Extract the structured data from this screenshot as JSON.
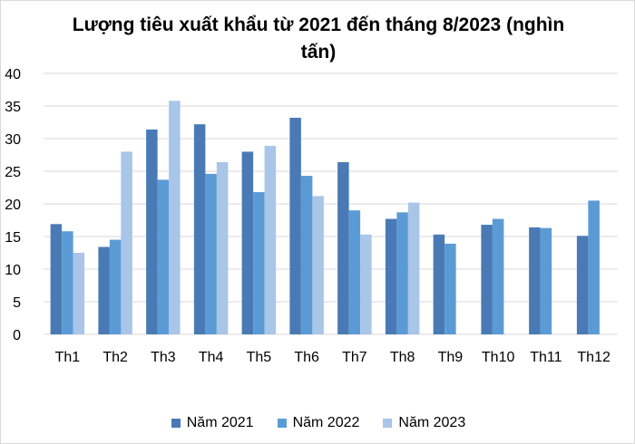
{
  "chart_data": {
    "type": "bar",
    "title": "Lượng tiêu xuất khẩu từ 2021 đến tháng 8/2023 (nghìn tấn)",
    "categories": [
      "Th1",
      "Th2",
      "Th3",
      "Th4",
      "Th5",
      "Th6",
      "Th7",
      "Th8",
      "Th9",
      "Th10",
      "Th11",
      "Th12"
    ],
    "ylim": [
      0,
      40
    ],
    "yticks": [
      0,
      5,
      10,
      15,
      20,
      25,
      30,
      35,
      40
    ],
    "grid": true,
    "legend_position": "bottom",
    "series": [
      {
        "name": "Năm 2021",
        "color": "#4a7ab5",
        "values": [
          16.9,
          13.4,
          31.4,
          32.2,
          28.0,
          33.2,
          26.4,
          17.7,
          15.3,
          16.8,
          16.4,
          15.1
        ]
      },
      {
        "name": "Năm 2022",
        "color": "#5b9bd5",
        "values": [
          15.8,
          14.5,
          23.7,
          24.6,
          21.8,
          24.3,
          19.0,
          18.7,
          13.9,
          17.7,
          16.3,
          20.5
        ]
      },
      {
        "name": "Năm 2023",
        "color": "#a9c5e8",
        "values": [
          12.5,
          28.0,
          35.8,
          26.4,
          28.9,
          21.2,
          15.3,
          20.2,
          null,
          null,
          null,
          null
        ]
      }
    ]
  }
}
